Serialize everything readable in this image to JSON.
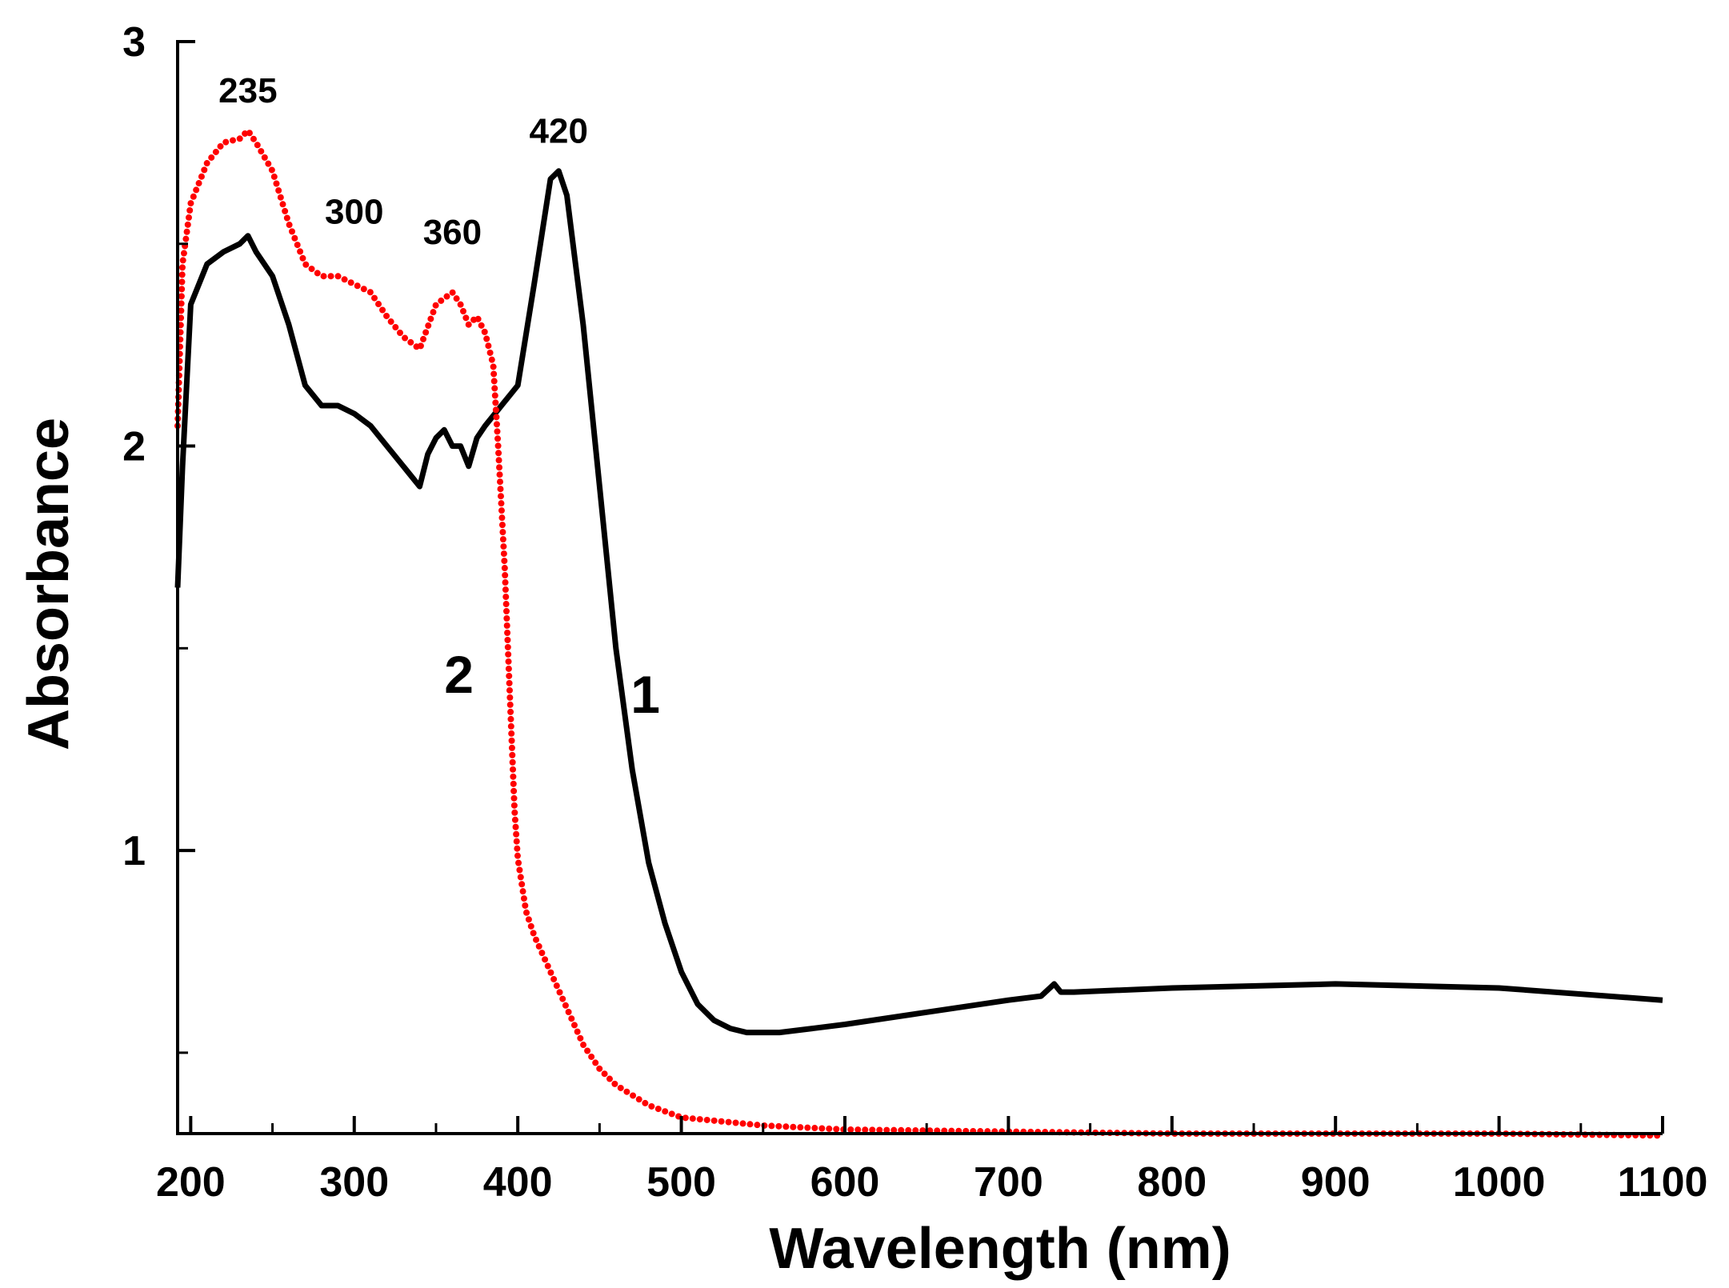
{
  "chart_data": {
    "type": "line",
    "title": "",
    "xlabel": "Wavelength (nm)",
    "ylabel": "Absorbance",
    "xlim": [
      192,
      1100
    ],
    "ylim": [
      0.3,
      3.0
    ],
    "xticks": [
      {
        "value": 200,
        "label": "200"
      },
      {
        "value": 300,
        "label": "300"
      },
      {
        "value": 400,
        "label": "400"
      },
      {
        "value": 500,
        "label": "500"
      },
      {
        "value": 600,
        "label": "600"
      },
      {
        "value": 700,
        "label": "700"
      },
      {
        "value": 800,
        "label": "800"
      },
      {
        "value": 900,
        "label": "900"
      },
      {
        "value": 1000,
        "label": "1000"
      },
      {
        "value": 1100,
        "label": "1100"
      }
    ],
    "yticks": [
      {
        "value": 1,
        "label": "1"
      },
      {
        "value": 2,
        "label": "2"
      },
      {
        "value": 3,
        "label": "3"
      }
    ],
    "series": [
      {
        "name": "1",
        "color": "#000000",
        "style": "solid",
        "x": [
          192,
          195,
          200,
          210,
          220,
          230,
          235,
          240,
          250,
          260,
          270,
          280,
          290,
          300,
          310,
          320,
          330,
          340,
          345,
          350,
          355,
          360,
          365,
          370,
          375,
          380,
          390,
          400,
          410,
          420,
          425,
          430,
          440,
          450,
          460,
          470,
          480,
          490,
          500,
          510,
          520,
          530,
          540,
          550,
          560,
          580,
          600,
          650,
          700,
          720,
          728,
          732,
          740,
          800,
          900,
          1000,
          1100
        ],
        "y": [
          1.65,
          1.95,
          2.35,
          2.45,
          2.48,
          2.5,
          2.52,
          2.48,
          2.42,
          2.3,
          2.15,
          2.1,
          2.1,
          2.08,
          2.05,
          2.0,
          1.95,
          1.9,
          1.98,
          2.02,
          2.04,
          2.0,
          2.0,
          1.95,
          2.02,
          2.05,
          2.1,
          2.15,
          2.4,
          2.66,
          2.68,
          2.62,
          2.3,
          1.9,
          1.5,
          1.2,
          0.97,
          0.82,
          0.7,
          0.62,
          0.58,
          0.56,
          0.55,
          0.55,
          0.55,
          0.56,
          0.57,
          0.6,
          0.63,
          0.64,
          0.67,
          0.65,
          0.65,
          0.66,
          0.67,
          0.66,
          0.63
        ]
      },
      {
        "name": "2",
        "color": "#ff0000",
        "style": "dotted",
        "x": [
          192,
          195,
          200,
          210,
          220,
          230,
          235,
          240,
          250,
          260,
          270,
          280,
          290,
          300,
          310,
          320,
          330,
          340,
          350,
          360,
          365,
          370,
          375,
          380,
          385,
          388,
          392,
          395,
          398,
          400,
          405,
          410,
          420,
          430,
          440,
          450,
          460,
          480,
          500,
          550,
          600,
          700,
          800,
          900,
          1000,
          1100
        ],
        "y": [
          2.05,
          2.45,
          2.6,
          2.7,
          2.75,
          2.76,
          2.78,
          2.75,
          2.68,
          2.55,
          2.45,
          2.42,
          2.42,
          2.4,
          2.38,
          2.32,
          2.27,
          2.24,
          2.35,
          2.38,
          2.35,
          2.3,
          2.32,
          2.28,
          2.2,
          2.0,
          1.7,
          1.4,
          1.1,
          0.98,
          0.85,
          0.79,
          0.7,
          0.61,
          0.52,
          0.46,
          0.42,
          0.37,
          0.34,
          0.32,
          0.31,
          0.305,
          0.3,
          0.3,
          0.3,
          0.295
        ]
      }
    ],
    "annotations": [
      {
        "text": "235",
        "x": 235,
        "y": 2.85
      },
      {
        "text": "300",
        "x": 300,
        "y": 2.55
      },
      {
        "text": "360",
        "x": 360,
        "y": 2.5
      },
      {
        "text": "420",
        "x": 425,
        "y": 2.75
      }
    ],
    "curve_labels": [
      {
        "text": "1",
        "x": 478,
        "y": 1.34
      },
      {
        "text": "2",
        "x": 364,
        "y": 1.39
      }
    ]
  }
}
